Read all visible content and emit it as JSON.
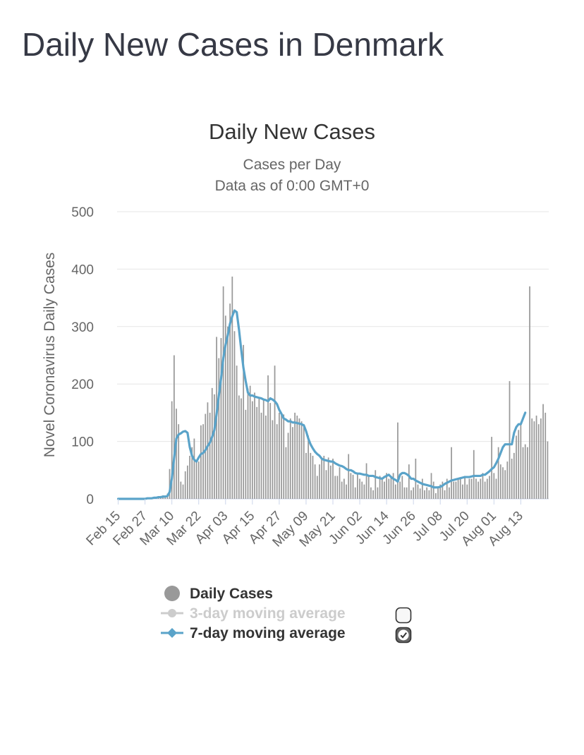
{
  "page": {
    "title": "Daily New Cases in Denmark"
  },
  "colors": {
    "bars": "#999999",
    "avg7": "#5aa3c9",
    "avg3_disabled": "#cccccc",
    "grid": "#e6e6e6",
    "text": "#333333",
    "muted": "#666666"
  },
  "chart_data": {
    "type": "bar",
    "title": "Daily New Cases",
    "subtitle": [
      "Cases per Day",
      "Data as of 0:00 GMT+0"
    ],
    "ylabel": "Novel Coronavirus Daily Cases",
    "xlabel": "",
    "ylim": [
      0,
      500
    ],
    "yticks": [
      0,
      100,
      200,
      300,
      400,
      500
    ],
    "start_date": "Feb 15",
    "xticks": [
      "Feb 15",
      "Feb 27",
      "Mar 10",
      "Mar 22",
      "Apr 03",
      "Apr 15",
      "Apr 27",
      "May 09",
      "May 21",
      "Jun 02",
      "Jun 14",
      "Jun 26",
      "Jul 08",
      "Jul 20",
      "Aug 01",
      "Aug 13"
    ],
    "xtick_step_days": 12,
    "grid": true,
    "legend": [
      {
        "label": "Daily Cases",
        "icon": "circle",
        "checkbox": null,
        "enabled": true
      },
      {
        "label": "3-day moving average",
        "icon": "line-circle",
        "checkbox": "unchecked",
        "enabled": false
      },
      {
        "label": "7-day moving average",
        "icon": "line-diamond",
        "checkbox": "checked",
        "enabled": true
      }
    ],
    "series": [
      {
        "name": "Daily Cases",
        "type": "bar",
        "values": [
          0,
          0,
          0,
          0,
          0,
          0,
          0,
          0,
          0,
          0,
          0,
          0,
          0,
          1,
          2,
          1,
          2,
          3,
          4,
          5,
          6,
          5,
          9,
          52,
          170,
          250,
          157,
          130,
          30,
          25,
          48,
          58,
          75,
          90,
          105,
          65,
          65,
          128,
          130,
          148,
          168,
          150,
          193,
          182,
          282,
          245,
          280,
          370,
          319,
          300,
          340,
          387,
          292,
          232,
          180,
          175,
          268,
          155,
          192,
          197,
          170,
          185,
          160,
          177,
          150,
          172,
          145,
          215,
          167,
          137,
          232,
          130,
          150,
          150,
          147,
          90,
          115,
          140,
          125,
          150,
          145,
          140,
          135,
          130,
          80,
          110,
          80,
          75,
          60,
          40,
          60,
          70,
          75,
          50,
          72,
          58,
          70,
          40,
          40,
          55,
          30,
          35,
          25,
          78,
          45,
          42,
          20,
          45,
          35,
          30,
          25,
          62,
          40,
          20,
          15,
          50,
          20,
          40,
          35,
          30,
          45,
          35,
          40,
          45,
          25,
          133,
          30,
          40,
          20,
          20,
          60,
          15,
          20,
          70,
          25,
          18,
          35,
          15,
          20,
          15,
          45,
          30,
          10,
          20,
          25,
          30,
          15,
          35,
          20,
          90,
          30,
          30,
          35,
          35,
          25,
          40,
          25,
          35,
          35,
          85,
          35,
          30,
          35,
          45,
          30,
          35,
          40,
          108,
          45,
          35,
          90,
          60,
          55,
          50,
          65,
          205,
          70,
          80,
          110,
          120,
          133,
          90,
          95,
          90,
          370,
          140,
          135,
          145,
          130,
          140,
          165,
          150,
          100
        ]
      },
      {
        "name": "7-day moving average",
        "type": "line",
        "values": [
          0,
          0,
          0,
          0,
          0,
          0,
          0,
          0,
          0,
          0,
          0,
          0,
          0,
          1,
          1,
          1,
          2,
          2,
          3,
          3,
          4,
          4,
          5,
          12,
          36,
          71,
          105,
          112,
          114,
          117,
          118,
          115,
          90,
          75,
          68,
          65,
          72,
          78,
          80,
          85,
          92,
          98,
          108,
          120,
          148,
          180,
          210,
          245,
          268,
          285,
          305,
          318,
          328,
          325,
          295,
          260,
          228,
          205,
          185,
          180,
          180,
          178,
          177,
          176,
          175,
          173,
          172,
          170,
          175,
          173,
          170,
          165,
          155,
          148,
          140,
          138,
          135,
          135,
          133,
          133,
          132,
          131,
          130,
          128,
          118,
          105,
          95,
          88,
          82,
          78,
          75,
          70,
          68,
          67,
          66,
          65,
          65,
          62,
          60,
          58,
          57,
          55,
          52,
          50,
          50,
          48,
          45,
          44,
          44,
          43,
          42,
          42,
          40,
          40,
          40,
          38,
          37,
          36,
          35,
          38,
          40,
          42,
          38,
          35,
          33,
          30,
          42,
          45,
          45,
          43,
          40,
          35,
          35,
          32,
          30,
          28,
          26,
          25,
          24,
          23,
          22,
          20,
          20,
          20,
          21,
          23,
          26,
          28,
          30,
          32,
          33,
          34,
          35,
          36,
          37,
          38,
          38,
          38,
          39,
          40,
          40,
          40,
          40,
          42,
          42,
          45,
          48,
          52,
          55,
          62,
          70,
          80,
          90,
          95,
          95,
          95,
          95,
          115,
          125,
          130,
          130,
          140,
          150
        ]
      }
    ]
  }
}
